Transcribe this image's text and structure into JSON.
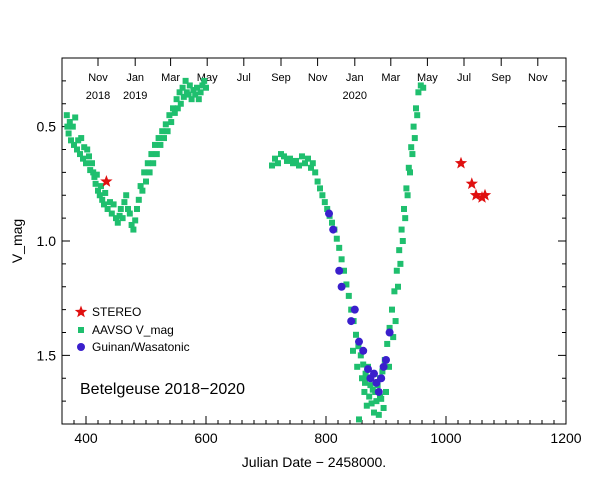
{
  "chart_data": {
    "type": "scatter",
    "annotation": "Betelgeuse 2018−2020",
    "xlabel": "Julian Date − 2458000.",
    "ylabel": "V_mag",
    "xlim": [
      360,
      1200
    ],
    "ylim": [
      1.8,
      0.2
    ],
    "y_inverted": true,
    "grid": false,
    "legend_position": "lower-left",
    "x_ticks": [
      {
        "value": 400,
        "label": "400"
      },
      {
        "value": 600,
        "label": "600"
      },
      {
        "value": 800,
        "label": "800"
      },
      {
        "value": 1000,
        "label": "1000"
      },
      {
        "value": 1200,
        "label": "1200"
      }
    ],
    "y_ticks": [
      {
        "value": 0.5,
        "label": "0.5"
      },
      {
        "value": 1.0,
        "label": "1.0"
      },
      {
        "value": 1.5,
        "label": "1.5"
      }
    ],
    "top_axis_months": [
      {
        "x": 420,
        "month": "Nov",
        "year": "2018"
      },
      {
        "x": 482,
        "month": "Jan",
        "year": "2019"
      },
      {
        "x": 541,
        "month": "Mar",
        "year": ""
      },
      {
        "x": 602,
        "month": "May",
        "year": ""
      },
      {
        "x": 663,
        "month": "Jul",
        "year": ""
      },
      {
        "x": 725,
        "month": "Sep",
        "year": ""
      },
      {
        "x": 786,
        "month": "Nov",
        "year": ""
      },
      {
        "x": 848,
        "month": "Jan",
        "year": "2020"
      },
      {
        "x": 908,
        "month": "Mar",
        "year": ""
      },
      {
        "x": 969,
        "month": "May",
        "year": ""
      },
      {
        "x": 1030,
        "month": "Jul",
        "year": ""
      },
      {
        "x": 1092,
        "month": "Sep",
        "year": ""
      },
      {
        "x": 1153,
        "month": "Nov",
        "year": ""
      }
    ],
    "series": [
      {
        "name": "STEREO",
        "marker": "star",
        "color": "#e01010",
        "points": [
          [
            434,
            0.74
          ],
          [
            1025,
            0.66
          ],
          [
            1043,
            0.75
          ],
          [
            1050,
            0.8
          ],
          [
            1060,
            0.81
          ],
          [
            1065,
            0.8
          ]
        ]
      },
      {
        "name": "AAVSO V_mag",
        "marker": "square",
        "color": "#1fbf6e",
        "points": [
          [
            368,
            0.45
          ],
          [
            369,
            0.5
          ],
          [
            371,
            0.53
          ],
          [
            373,
            0.48
          ],
          [
            375,
            0.56
          ],
          [
            378,
            0.5
          ],
          [
            380,
            0.58
          ],
          [
            382,
            0.46
          ],
          [
            385,
            0.6
          ],
          [
            387,
            0.56
          ],
          [
            390,
            0.62
          ],
          [
            392,
            0.55
          ],
          [
            395,
            0.64
          ],
          [
            397,
            0.59
          ],
          [
            400,
            0.66
          ],
          [
            402,
            0.6
          ],
          [
            405,
            0.63
          ],
          [
            407,
            0.69
          ],
          [
            410,
            0.66
          ],
          [
            412,
            0.7
          ],
          [
            414,
            0.72
          ],
          [
            416,
            0.75
          ],
          [
            418,
            0.71
          ],
          [
            420,
            0.78
          ],
          [
            423,
            0.8
          ],
          [
            425,
            0.76
          ],
          [
            427,
            0.82
          ],
          [
            430,
            0.84
          ],
          [
            432,
            0.79
          ],
          [
            436,
            0.86
          ],
          [
            440,
            0.83
          ],
          [
            443,
            0.88
          ],
          [
            446,
            0.84
          ],
          [
            450,
            0.9
          ],
          [
            453,
            0.92
          ],
          [
            456,
            0.89
          ],
          [
            458,
            0.86
          ],
          [
            461,
            0.9
          ],
          [
            464,
            0.83
          ],
          [
            467,
            0.8
          ],
          [
            470,
            0.86
          ],
          [
            473,
            0.88
          ],
          [
            476,
            0.93
          ],
          [
            479,
            0.95
          ],
          [
            482,
            0.91
          ],
          [
            485,
            0.86
          ],
          [
            488,
            0.82
          ],
          [
            491,
            0.76
          ],
          [
            494,
            0.78
          ],
          [
            497,
            0.7
          ],
          [
            500,
            0.74
          ],
          [
            503,
            0.66
          ],
          [
            506,
            0.7
          ],
          [
            509,
            0.62
          ],
          [
            512,
            0.66
          ],
          [
            515,
            0.58
          ],
          [
            518,
            0.62
          ],
          [
            521,
            0.55
          ],
          [
            524,
            0.58
          ],
          [
            527,
            0.52
          ],
          [
            530,
            0.55
          ],
          [
            533,
            0.49
          ],
          [
            536,
            0.52
          ],
          [
            539,
            0.45
          ],
          [
            542,
            0.48
          ],
          [
            545,
            0.42
          ],
          [
            548,
            0.44
          ],
          [
            551,
            0.38
          ],
          [
            553,
            0.42
          ],
          [
            556,
            0.35
          ],
          [
            558,
            0.4
          ],
          [
            561,
            0.33
          ],
          [
            563,
            0.37
          ],
          [
            566,
            0.3
          ],
          [
            568,
            0.35
          ],
          [
            571,
            0.36
          ],
          [
            573,
            0.32
          ],
          [
            576,
            0.38
          ],
          [
            579,
            0.34
          ],
          [
            582,
            0.36
          ],
          [
            585,
            0.33
          ],
          [
            588,
            0.38
          ],
          [
            591,
            0.35
          ],
          [
            594,
            0.32
          ],
          [
            597,
            0.3
          ],
          [
            600,
            0.33
          ],
          [
            710,
            0.67
          ],
          [
            715,
            0.64
          ],
          [
            720,
            0.66
          ],
          [
            725,
            0.62
          ],
          [
            730,
            0.63
          ],
          [
            735,
            0.65
          ],
          [
            740,
            0.64
          ],
          [
            745,
            0.66
          ],
          [
            750,
            0.65
          ],
          [
            755,
            0.67
          ],
          [
            760,
            0.63
          ],
          [
            765,
            0.66
          ],
          [
            770,
            0.64
          ],
          [
            775,
            0.68
          ],
          [
            778,
            0.66
          ],
          [
            782,
            0.7
          ],
          [
            786,
            0.74
          ],
          [
            790,
            0.77
          ],
          [
            794,
            0.8
          ],
          [
            798,
            0.83
          ],
          [
            802,
            0.86
          ],
          [
            806,
            0.89
          ],
          [
            810,
            0.92
          ],
          [
            814,
            0.95
          ],
          [
            818,
            0.99
          ],
          [
            822,
            1.03
          ],
          [
            826,
            1.08
          ],
          [
            830,
            1.13
          ],
          [
            834,
            1.19
          ],
          [
            838,
            1.24
          ],
          [
            842,
            1.3
          ],
          [
            846,
            1.35
          ],
          [
            850,
            1.41
          ],
          [
            854,
            1.46
          ],
          [
            858,
            1.5
          ],
          [
            862,
            1.54
          ],
          [
            866,
            1.58
          ],
          [
            870,
            1.6
          ],
          [
            874,
            1.63
          ],
          [
            878,
            1.65
          ],
          [
            882,
            1.66
          ],
          [
            886,
            1.63
          ],
          [
            890,
            1.6
          ],
          [
            894,
            1.57
          ],
          [
            898,
            1.52
          ],
          [
            902,
            1.45
          ],
          [
            906,
            1.38
          ],
          [
            910,
            1.3
          ],
          [
            914,
            1.22
          ],
          [
            918,
            1.13
          ],
          [
            922,
            1.04
          ],
          [
            926,
            0.95
          ],
          [
            930,
            0.86
          ],
          [
            934,
            0.77
          ],
          [
            938,
            0.68
          ],
          [
            942,
            0.59
          ],
          [
            946,
            0.5
          ],
          [
            950,
            0.42
          ],
          [
            954,
            0.35
          ],
          [
            958,
            0.32
          ],
          [
            962,
            0.33
          ],
          [
            845,
            1.48
          ],
          [
            852,
            1.55
          ],
          [
            860,
            1.6
          ],
          [
            864,
            1.66
          ],
          [
            868,
            1.72
          ],
          [
            872,
            1.68
          ],
          [
            876,
            1.71
          ],
          [
            880,
            1.75
          ],
          [
            884,
            1.7
          ],
          [
            888,
            1.76
          ],
          [
            892,
            1.69
          ],
          [
            896,
            1.73
          ],
          [
            900,
            1.66
          ],
          [
            855,
            1.78
          ],
          [
            865,
            1.62
          ],
          [
            870,
            1.55
          ],
          [
            880,
            1.58
          ],
          [
            890,
            1.68
          ],
          [
            905,
            1.55
          ],
          [
            912,
            1.42
          ],
          [
            916,
            1.35
          ],
          [
            920,
            1.2
          ],
          [
            924,
            1.1
          ],
          [
            928,
            1.0
          ],
          [
            932,
            0.9
          ],
          [
            936,
            0.8
          ],
          [
            940,
            0.7
          ],
          [
            944,
            0.62
          ],
          [
            948,
            0.55
          ],
          [
            952,
            0.45
          ]
        ]
      },
      {
        "name": "Guinan/Wasatonic",
        "marker": "circle",
        "color": "#3a1fcc",
        "points": [
          [
            805,
            0.88
          ],
          [
            812,
            0.95
          ],
          [
            822,
            1.13
          ],
          [
            826,
            1.2
          ],
          [
            842,
            1.35
          ],
          [
            848,
            1.3
          ],
          [
            855,
            1.44
          ],
          [
            862,
            1.48
          ],
          [
            870,
            1.56
          ],
          [
            874,
            1.6
          ],
          [
            880,
            1.58
          ],
          [
            884,
            1.62
          ],
          [
            888,
            1.66
          ],
          [
            892,
            1.6
          ],
          [
            896,
            1.55
          ],
          [
            900,
            1.52
          ],
          [
            906,
            1.4
          ]
        ]
      }
    ]
  }
}
